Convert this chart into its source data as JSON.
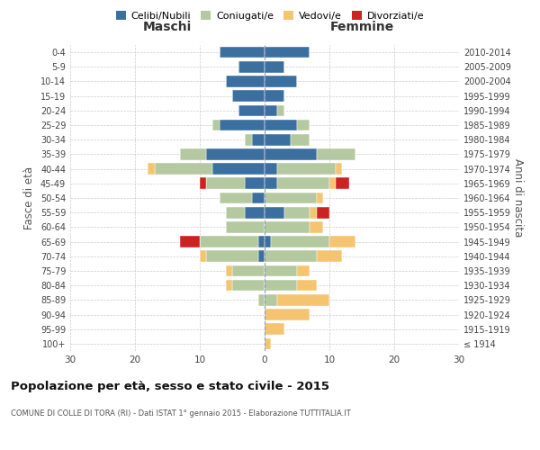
{
  "age_groups": [
    "100+",
    "95-99",
    "90-94",
    "85-89",
    "80-84",
    "75-79",
    "70-74",
    "65-69",
    "60-64",
    "55-59",
    "50-54",
    "45-49",
    "40-44",
    "35-39",
    "30-34",
    "25-29",
    "20-24",
    "15-19",
    "10-14",
    "5-9",
    "0-4"
  ],
  "birth_years": [
    "≤ 1914",
    "1915-1919",
    "1920-1924",
    "1925-1929",
    "1930-1934",
    "1935-1939",
    "1940-1944",
    "1945-1949",
    "1950-1954",
    "1955-1959",
    "1960-1964",
    "1965-1969",
    "1970-1974",
    "1975-1979",
    "1980-1984",
    "1985-1989",
    "1990-1994",
    "1995-1999",
    "2000-2004",
    "2005-2009",
    "2010-2014"
  ],
  "male": {
    "celibi": [
      0,
      0,
      0,
      0,
      0,
      0,
      1,
      1,
      0,
      3,
      2,
      3,
      8,
      9,
      2,
      7,
      4,
      5,
      6,
      4,
      7
    ],
    "coniugati": [
      0,
      0,
      0,
      1,
      5,
      5,
      8,
      9,
      6,
      3,
      5,
      6,
      9,
      4,
      1,
      1,
      0,
      0,
      0,
      0,
      0
    ],
    "vedovi": [
      0,
      0,
      0,
      0,
      1,
      1,
      1,
      0,
      0,
      0,
      0,
      0,
      1,
      0,
      0,
      0,
      0,
      0,
      0,
      0,
      0
    ],
    "divorziati": [
      0,
      0,
      0,
      0,
      0,
      0,
      0,
      3,
      0,
      0,
      0,
      1,
      0,
      0,
      0,
      0,
      0,
      0,
      0,
      0,
      0
    ]
  },
  "female": {
    "nubili": [
      0,
      0,
      0,
      0,
      0,
      0,
      0,
      1,
      0,
      3,
      0,
      2,
      2,
      8,
      4,
      5,
      2,
      3,
      5,
      3,
      7
    ],
    "coniugate": [
      0,
      0,
      0,
      2,
      5,
      5,
      8,
      9,
      7,
      4,
      8,
      8,
      9,
      6,
      3,
      2,
      1,
      0,
      0,
      0,
      0
    ],
    "vedove": [
      1,
      3,
      7,
      8,
      3,
      2,
      4,
      4,
      2,
      1,
      1,
      1,
      1,
      0,
      0,
      0,
      0,
      0,
      0,
      0,
      0
    ],
    "divorziate": [
      0,
      0,
      0,
      0,
      0,
      0,
      0,
      0,
      0,
      2,
      0,
      2,
      0,
      0,
      0,
      0,
      0,
      0,
      0,
      0,
      0
    ]
  },
  "colors": {
    "celibi": "#3b6fa0",
    "coniugati": "#b5c9a0",
    "vedovi": "#f5c470",
    "divorziati": "#cc2222"
  },
  "title": "Popolazione per età, sesso e stato civile - 2015",
  "subtitle": "COMUNE DI COLLE DI TORA (RI) - Dati ISTAT 1° gennaio 2015 - Elaborazione TUTTITALIA.IT",
  "xlabel_left": "Maschi",
  "xlabel_right": "Femmine",
  "ylabel_left": "Fasce di età",
  "ylabel_right": "Anni di nascita",
  "xlim": 30,
  "legend_labels": [
    "Celibi/Nubili",
    "Coniugati/e",
    "Vedovi/e",
    "Divorziati/e"
  ]
}
